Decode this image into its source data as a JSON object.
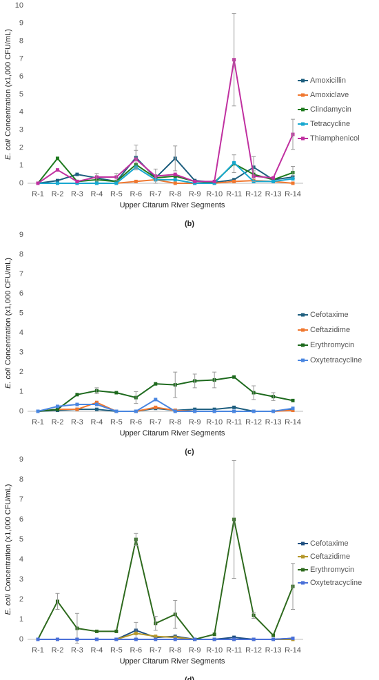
{
  "chart_data": [
    {
      "type": "line",
      "panel_label": "(b)",
      "y_label": [
        "E. coli",
        "Concentration (x1,000 CFU/mL)"
      ],
      "x_label": "Upper Citarum River Segments",
      "categories": [
        "R-1",
        "R-2",
        "R-3",
        "R-4",
        "R-5",
        "R-6",
        "R-7",
        "R-8",
        "R-9",
        "R-10",
        "R-11",
        "R-12",
        "R-13",
        "R-14"
      ],
      "ylim": [
        0,
        10
      ],
      "yticks": [
        0,
        1,
        2,
        3,
        4,
        5,
        6,
        7,
        8,
        9,
        10
      ],
      "grid": false,
      "series": [
        {
          "name": "Amoxicillin",
          "color": "#1f5f7f",
          "values": [
            0,
            0.15,
            0.5,
            0.3,
            0.1,
            1.45,
            0.3,
            1.4,
            0.15,
            0.05,
            0.2,
            0.9,
            0.2,
            0.35
          ],
          "errors": [
            null,
            null,
            null,
            null,
            null,
            0.7,
            null,
            0.7,
            null,
            null,
            null,
            0.6,
            null,
            null
          ]
        },
        {
          "name": "Amoxiclave",
          "color": "#f07830",
          "values": [
            0,
            0,
            0,
            0,
            0,
            0.1,
            0.2,
            0,
            0,
            0,
            0.1,
            0.15,
            0.1,
            0
          ]
        },
        {
          "name": "Clindamycin",
          "color": "#1e7a1e",
          "values": [
            0,
            1.4,
            0.1,
            0.2,
            0.1,
            1.05,
            0.3,
            0.4,
            0.1,
            0.05,
            1.1,
            0.5,
            0.2,
            0.6
          ],
          "errors": [
            null,
            null,
            null,
            null,
            null,
            null,
            null,
            null,
            null,
            null,
            0.5,
            null,
            null,
            0.35
          ]
        },
        {
          "name": "Tetracycline",
          "color": "#17a8d0",
          "values": [
            0,
            0,
            0,
            0,
            0,
            0.9,
            0.2,
            0.2,
            0,
            0,
            1.15,
            0.1,
            0.1,
            0.25
          ]
        },
        {
          "name": "Thiamphenicol",
          "color": "#c030a0",
          "values": [
            0,
            0.75,
            0.1,
            0.35,
            0.35,
            1.35,
            0.4,
            0.5,
            0.1,
            0.1,
            6.95,
            0.4,
            0.3,
            2.75
          ],
          "errors": [
            null,
            null,
            null,
            0.2,
            0.2,
            0.5,
            0.4,
            null,
            null,
            null,
            2.6,
            0.3,
            null,
            0.85
          ]
        }
      ]
    },
    {
      "type": "line",
      "panel_label": "(c)",
      "y_label": [
        "E. coli",
        "Concentration (x1,000 CFU/mL)"
      ],
      "x_label": "Upper Citarum River Segments",
      "categories": [
        "R-1",
        "R-2",
        "R-3",
        "R-4",
        "R-5",
        "R-6",
        "R-7",
        "R-8",
        "R-9",
        "R-10",
        "R-11",
        "R-12",
        "R-13",
        "R-14"
      ],
      "ylim": [
        0,
        9
      ],
      "yticks": [
        0,
        1,
        2,
        3,
        4,
        5,
        6,
        7,
        8,
        9
      ],
      "grid": false,
      "series": [
        {
          "name": "Cefotaxime",
          "color": "#1f5f7f",
          "values": [
            0,
            0.05,
            0.1,
            0.1,
            0,
            0,
            0.15,
            0.05,
            0.1,
            0.1,
            0.2,
            0,
            0,
            0.1
          ]
        },
        {
          "name": "Ceftazidime",
          "color": "#f07830",
          "values": [
            0,
            0.1,
            0.1,
            0.45,
            0,
            0,
            0.2,
            0.05,
            0,
            0,
            0,
            0,
            0,
            0.05
          ]
        },
        {
          "name": "Erythromycin",
          "color": "#1e6a1e",
          "values": [
            0,
            0.1,
            0.85,
            1.05,
            0.95,
            0.7,
            1.4,
            1.35,
            1.55,
            1.6,
            1.75,
            0.95,
            0.75,
            0.55
          ],
          "errors": [
            null,
            null,
            null,
            0.15,
            null,
            0.3,
            null,
            0.65,
            0.35,
            0.4,
            null,
            0.35,
            0.2,
            null
          ]
        },
        {
          "name": "Oxytetracycline",
          "color": "#4a86e0",
          "values": [
            0,
            0.25,
            0.35,
            0.35,
            0,
            0,
            0.6,
            0,
            0,
            0,
            0,
            0,
            0,
            0.15
          ]
        }
      ]
    },
    {
      "type": "line",
      "panel_label": "(d)",
      "y_label": [
        "E. coli",
        "Concentration (x1,000 CFU/mL)"
      ],
      "x_label": "Upper Citarum River Segments",
      "categories": [
        "R-1",
        "R-2",
        "R-3",
        "R-4",
        "R-5",
        "R-6",
        "R-7",
        "R-8",
        "R-9",
        "R-10",
        "R-11",
        "R-12",
        "R-13",
        "R-14"
      ],
      "ylim": [
        0,
        9
      ],
      "yticks": [
        0,
        1,
        2,
        3,
        4,
        5,
        6,
        7,
        8,
        9
      ],
      "grid": false,
      "series": [
        {
          "name": "Cefotaxime",
          "color": "#1f4f80",
          "values": [
            0,
            0,
            0,
            0,
            0,
            0.45,
            0.1,
            0.15,
            0,
            0,
            0.1,
            0,
            0,
            0.05
          ],
          "errors": [
            null,
            null,
            null,
            null,
            null,
            0.4,
            null,
            null,
            null,
            null,
            null,
            null,
            null,
            null
          ]
        },
        {
          "name": "Ceftazidime",
          "color": "#b5972a",
          "values": [
            0,
            0,
            0,
            0,
            0,
            0.3,
            0.15,
            0.1,
            0,
            0,
            0,
            0,
            0,
            0
          ]
        },
        {
          "name": "Erythromycin",
          "color": "#2e6a1e",
          "values": [
            0,
            1.9,
            0.55,
            0.4,
            0.4,
            5.0,
            0.8,
            1.25,
            0,
            0.25,
            6.0,
            1.2,
            0.2,
            2.65
          ],
          "errors": [
            null,
            0.4,
            0.75,
            null,
            null,
            0.3,
            0.35,
            0.7,
            null,
            null,
            2.95,
            0.15,
            null,
            1.15
          ]
        },
        {
          "name": "Oxytetracycline",
          "color": "#4a70d8",
          "values": [
            0,
            0,
            0,
            0,
            0,
            0,
            0,
            0,
            0,
            0,
            0,
            0,
            0,
            0.05
          ]
        }
      ]
    }
  ]
}
